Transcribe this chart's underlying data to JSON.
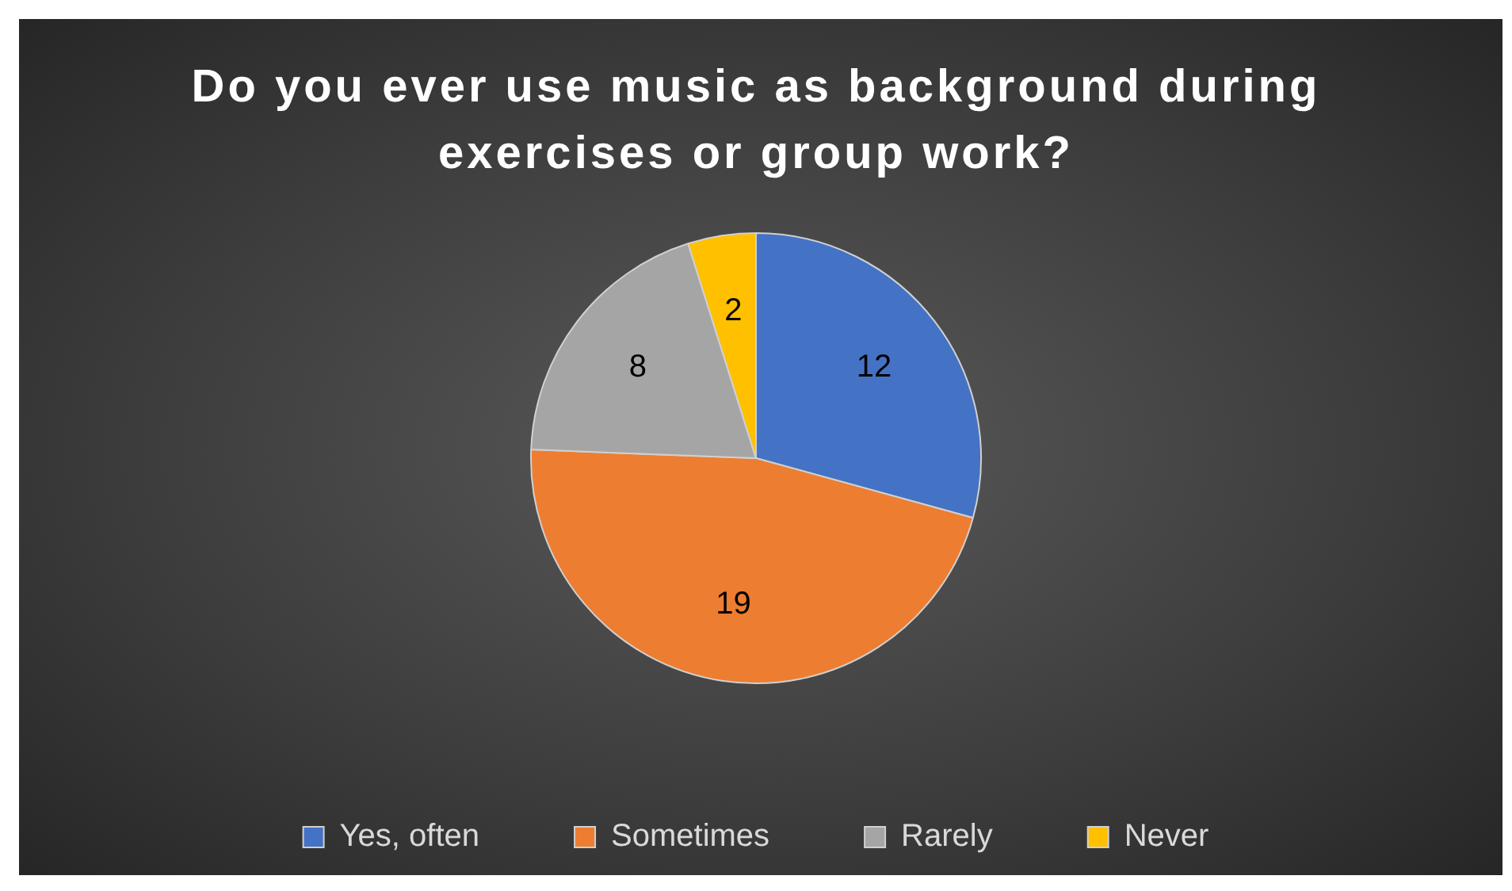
{
  "chart_data": {
    "type": "pie",
    "title": "Do you ever use music as background during exercises or group work?",
    "categories": [
      "Yes, often",
      "Sometimes",
      "Rarely",
      "Never"
    ],
    "values": [
      12,
      19,
      8,
      2
    ],
    "colors": [
      "#4472c4",
      "#ed7d31",
      "#a5a5a5",
      "#ffc000"
    ],
    "data_labels": true,
    "legend": "bottom"
  }
}
